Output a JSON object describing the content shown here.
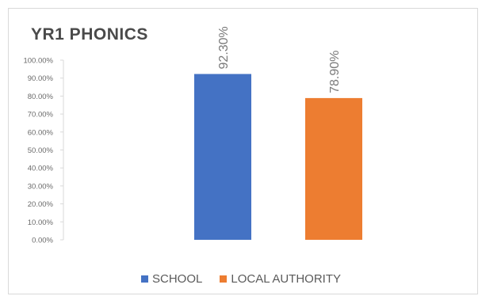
{
  "chart_data": {
    "type": "bar",
    "title": "YR1 PHONICS",
    "xlabel": "",
    "ylabel": "",
    "ylim": [
      0,
      100
    ],
    "y_tick_step": 10,
    "y_tick_format": "percent_2dp",
    "grid": false,
    "legend_position": "bottom",
    "categories": [
      "SCHOOL",
      "LOCAL AUTHORITY"
    ],
    "series": [
      {
        "name": "SCHOOL",
        "values": [
          92.3,
          null
        ],
        "data_labels": [
          "92.30%",
          ""
        ],
        "color": "#4472C4"
      },
      {
        "name": "LOCAL AUTHORITY",
        "values": [
          null,
          78.9
        ],
        "data_labels": [
          "",
          "78.90%"
        ],
        "color": "#ED7D31"
      }
    ]
  }
}
